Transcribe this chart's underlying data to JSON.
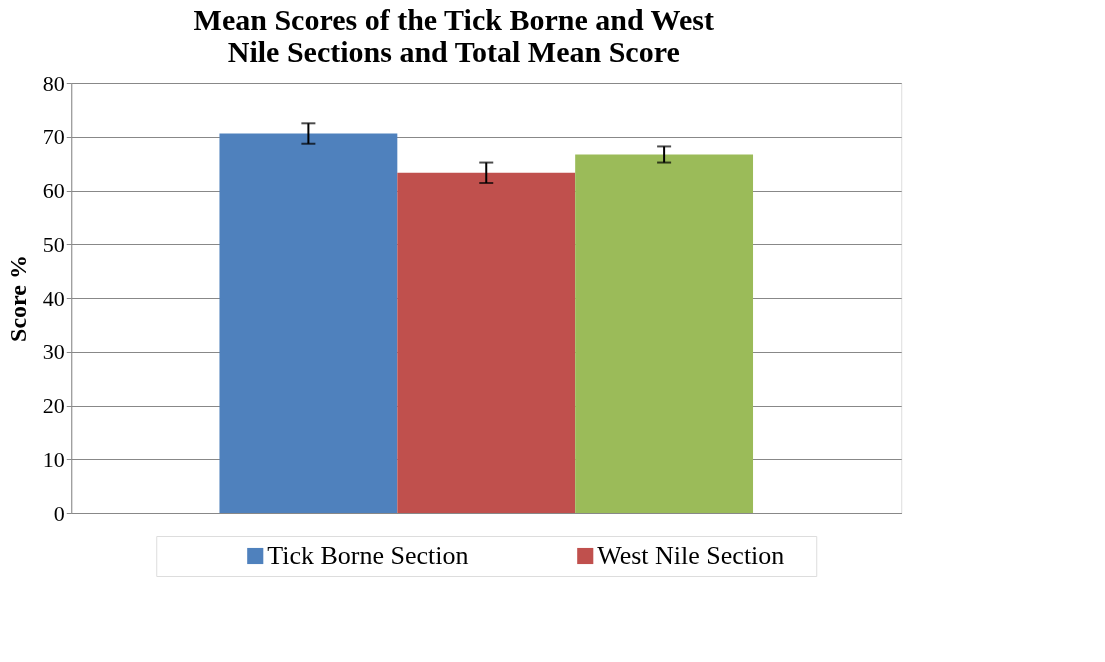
{
  "chart_data": {
    "type": "bar",
    "title": "Mean Scores of the Tick Borne and West Nile Sections and Total Mean Score",
    "ylabel": "Score %",
    "categories": [
      null
    ],
    "series": [
      {
        "name": "Tick Borne Section",
        "color": "#4f81bd",
        "values": [
          70.6
        ],
        "errors": [
          1.9
        ]
      },
      {
        "name": "West Nile Section",
        "color": "#c0504d",
        "values": [
          63.3
        ],
        "errors": [
          1.9
        ]
      },
      {
        "color": "#9bbb59",
        "values": [
          66.7
        ],
        "errors": [
          1.5
        ]
      }
    ],
    "ylim": [
      0,
      80
    ],
    "yticks": [
      0,
      10,
      20,
      30,
      40,
      50,
      60,
      70,
      80
    ],
    "grid": "y",
    "legend": "bottom",
    "tick_labels": "y"
  }
}
